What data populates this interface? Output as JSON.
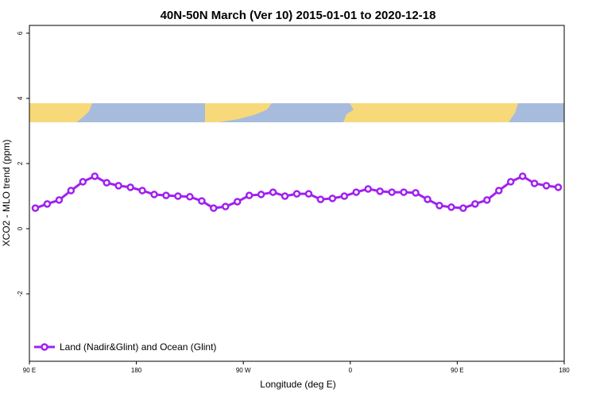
{
  "chart_data": {
    "type": "line",
    "title": "40N-50N March (Ver 10)   2015-01-01 to 2020-12-18",
    "x_label": "Longitude (deg E)",
    "y_label": "XCO2 - MLO trend (ppm)",
    "x": [
      95,
      105,
      115,
      125,
      135,
      145,
      155,
      165,
      175,
      185,
      195,
      205,
      215,
      225,
      235,
      245,
      255,
      265,
      275,
      285,
      295,
      305,
      315,
      325,
      335,
      345,
      355,
      365,
      375,
      385,
      395,
      405,
      415,
      425,
      435,
      445,
      455,
      465,
      475,
      485,
      495,
      505,
      515,
      525,
      535
    ],
    "series": [
      {
        "name": "Land (Nadir&Glint) and Ocean (Glint)",
        "color": "#a020f0",
        "values": [
          0.63,
          0.76,
          0.88,
          1.17,
          1.44,
          1.61,
          1.41,
          1.32,
          1.27,
          1.17,
          1.05,
          1.02,
          1.0,
          0.98,
          0.85,
          0.63,
          0.68,
          0.83,
          1.02,
          1.05,
          1.12,
          1.0,
          1.07,
          1.07,
          0.9,
          0.93,
          1.0,
          1.12,
          1.22,
          1.15,
          1.12,
          1.12,
          1.1,
          0.9,
          0.71,
          0.66,
          0.63,
          0.76,
          0.88,
          1.17,
          1.44,
          1.61,
          1.39,
          1.32,
          1.27
        ]
      }
    ],
    "xlim": [
      90,
      540
    ],
    "ylim": [
      -4.07,
      6.24
    ],
    "xticks": [
      {
        "value": 90,
        "label": "90 E"
      },
      180,
      {
        "value": 270,
        "label": "90 W"
      },
      {
        "value": 360,
        "label": "0"
      },
      {
        "value": 450,
        "label": "90 E"
      },
      {
        "value": 540,
        "label": "180"
      }
    ],
    "yticks": [
      -2,
      0,
      2,
      4,
      6
    ],
    "legend": "bottom-left"
  }
}
